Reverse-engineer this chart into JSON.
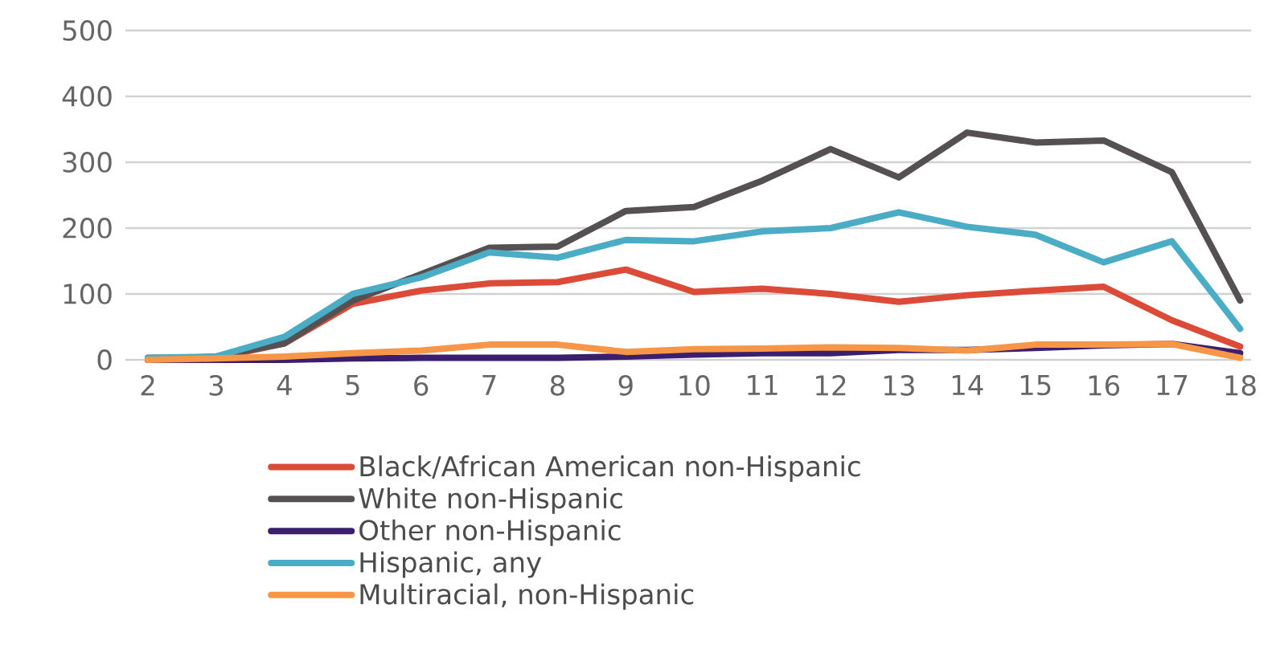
{
  "chart_data": {
    "type": "line",
    "categories": [
      "2",
      "3",
      "4",
      "5",
      "6",
      "7",
      "8",
      "9",
      "10",
      "11",
      "12",
      "13",
      "14",
      "15",
      "16",
      "17",
      "18"
    ],
    "series": [
      {
        "name": "Black/African American non-Hispanic",
        "color": "#dc4a38",
        "values": [
          3,
          3,
          25,
          85,
          105,
          116,
          118,
          137,
          103,
          108,
          100,
          88,
          98,
          105,
          111,
          60,
          20
        ]
      },
      {
        "name": "White non-Hispanic",
        "color": "#555152",
        "values": [
          0,
          5,
          25,
          90,
          130,
          170,
          172,
          226,
          232,
          272,
          320,
          277,
          345,
          330,
          333,
          285,
          90
        ]
      },
      {
        "name": "Other non-Hispanic",
        "color": "#3a1f6e",
        "values": [
          0,
          0,
          0,
          2,
          3,
          3,
          3,
          5,
          8,
          10,
          10,
          15,
          15,
          18,
          22,
          24,
          10
        ]
      },
      {
        "name": "Hispanic, any",
        "color": "#4bacc6",
        "values": [
          3,
          5,
          35,
          100,
          125,
          163,
          155,
          182,
          180,
          195,
          200,
          224,
          202,
          190,
          148,
          180,
          47
        ]
      },
      {
        "name": "Multiracial, non-Hispanic",
        "color": "#f79646",
        "values": [
          0,
          2,
          5,
          10,
          14,
          23,
          23,
          12,
          16,
          17,
          19,
          18,
          14,
          23,
          23,
          24,
          3
        ]
      }
    ],
    "ylim": [
      0,
      500
    ],
    "yticks": [
      0,
      100,
      200,
      300,
      400,
      500
    ],
    "grid": "y",
    "legend": "bottom"
  }
}
